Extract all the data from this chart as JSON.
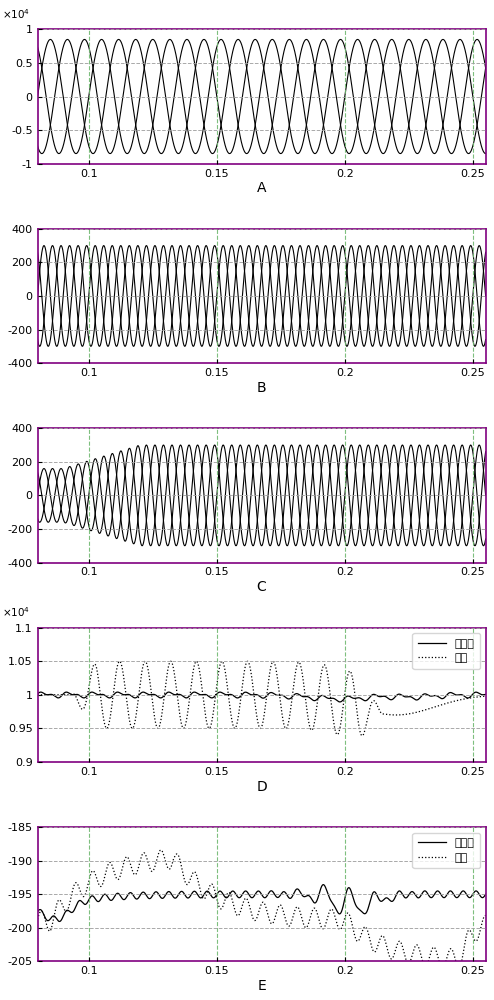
{
  "xlim": [
    0.08,
    0.255
  ],
  "xticks": [
    0.1,
    0.15,
    0.2,
    0.25
  ],
  "xticklabels": [
    "0.1",
    "0.15",
    "0.2",
    "0.25"
  ],
  "panel_A": {
    "ylim": [
      -1,
      1
    ],
    "yticks": [
      -1,
      -0.5,
      0,
      0.5,
      1
    ],
    "yticklabels": [
      "-1",
      "-0.5",
      "0",
      "0.5",
      "1"
    ],
    "xlabel": "A",
    "amp": 8500,
    "freq1": 50,
    "n_signals": 3,
    "phases": [
      0,
      2.094,
      4.189
    ]
  },
  "panel_B": {
    "ylim": [
      -400,
      400
    ],
    "yticks": [
      -400,
      -200,
      0,
      200,
      400
    ],
    "yticklabels": [
      "-400",
      "-200",
      "0",
      "200",
      "400"
    ],
    "xlabel": "B",
    "amp": 300,
    "freq": 100,
    "n_signals": 3,
    "phases": [
      0,
      2.094,
      4.189
    ]
  },
  "panel_C": {
    "ylim": [
      -400,
      400
    ],
    "yticks": [
      -400,
      -200,
      0,
      200,
      400
    ],
    "yticklabels": [
      "-400",
      "-200",
      "0",
      "200",
      "400"
    ],
    "xlabel": "C",
    "amp1": 160,
    "amp2": 300,
    "freq": 100,
    "n_signals": 3,
    "phases": [
      0,
      2.094,
      4.189
    ]
  },
  "panel_D": {
    "ylim": [
      0.9,
      1.1
    ],
    "yticks": [
      0.9,
      0.95,
      1.0,
      1.05,
      1.1
    ],
    "yticklabels": [
      "0.9",
      "0.95",
      "1",
      "1.05",
      "1.1"
    ],
    "xlabel": "D",
    "legend": [
      "本发明",
      "常规"
    ],
    "dc": 10000,
    "ripple_amp": 500,
    "ripple_freq": 100
  },
  "panel_E": {
    "ylim": [
      -205,
      -185
    ],
    "yticks": [
      -205,
      -200,
      -195,
      -190,
      -185
    ],
    "yticklabels": [
      "-205",
      "-200",
      "-195",
      "-190",
      "-185"
    ],
    "xlabel": "E",
    "legend": [
      "本发明",
      "常规"
    ],
    "dc1": -197,
    "dc2": -199
  },
  "border_color": "#800080",
  "grid_h_color": "#a0a0a0",
  "grid_v_color": "#70b870",
  "line_color": "#000000"
}
